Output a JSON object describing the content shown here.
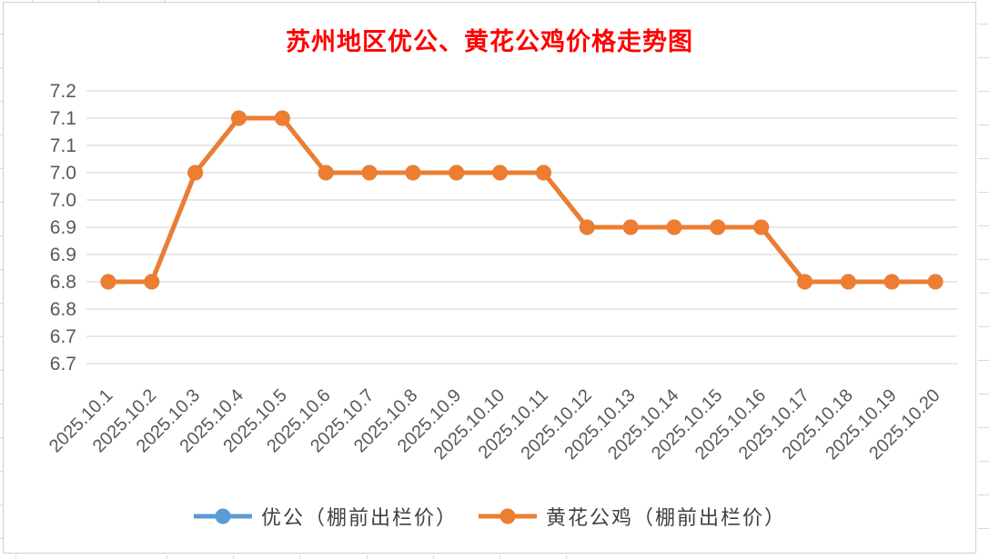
{
  "title": {
    "text": "苏州地区优公、黄花公鸡价格走势图",
    "color": "#FF0000"
  },
  "chart_data": {
    "type": "line",
    "title": "苏州地区优公、黄花公鸡价格走势图",
    "x": [
      "2025.10.1",
      "2025.10.2",
      "2025.10.3",
      "2025.10.4",
      "2025.10.5",
      "2025.10.6",
      "2025.10.7",
      "2025.10.8",
      "2025.10.9",
      "2025.10.10",
      "2025.10.11",
      "2025.10.12",
      "2025.10.13",
      "2025.10.14",
      "2025.10.15",
      "2025.10.16",
      "2025.10.17",
      "2025.10.18",
      "2025.10.19",
      "2025.10.20"
    ],
    "series": [
      {
        "name": "优公（棚前出栏价）",
        "color": "#5B9BD5",
        "values": [
          6.8,
          6.8,
          7.0,
          7.1,
          7.1,
          7.0,
          7.0,
          7.0,
          7.0,
          7.0,
          7.0,
          6.9,
          6.9,
          6.9,
          6.9,
          6.9,
          6.8,
          6.8,
          6.8,
          6.8
        ],
        "note": "identical values; completely hidden behind the orange series in the plot"
      },
      {
        "name": "黄花公鸡（棚前出栏价）",
        "color": "#ED7D31",
        "values": [
          6.8,
          6.8,
          7.0,
          7.1,
          7.1,
          7.0,
          7.0,
          7.0,
          7.0,
          7.0,
          7.0,
          6.9,
          6.9,
          6.9,
          6.9,
          6.9,
          6.8,
          6.8,
          6.8,
          6.8
        ]
      }
    ],
    "xlabel": "",
    "ylabel": "",
    "ylim": [
      6.7,
      7.2
    ],
    "y_major_unit": 0.05,
    "y_tick_labels_top_to_bottom": [
      "7.2",
      "7.1",
      "7.1",
      "7.0",
      "7.0",
      "6.9",
      "6.9",
      "6.8",
      "6.8",
      "6.7",
      "6.7"
    ],
    "y_axis_note": "gridline every 0.05, labels rounded to 1 decimal so each value appears twice; data points sit on the upper gridline of each duplicated label pair",
    "x_tick_rotation": 45,
    "grid": true,
    "legend_position": "bottom",
    "marker": "circle"
  },
  "style": {
    "background": "#FFFFFF",
    "grid_color": "#D9D9D9",
    "axis_label_color": "#595959",
    "legend_text_color": "#404040",
    "chart_border_color": "#D2D0CE"
  }
}
